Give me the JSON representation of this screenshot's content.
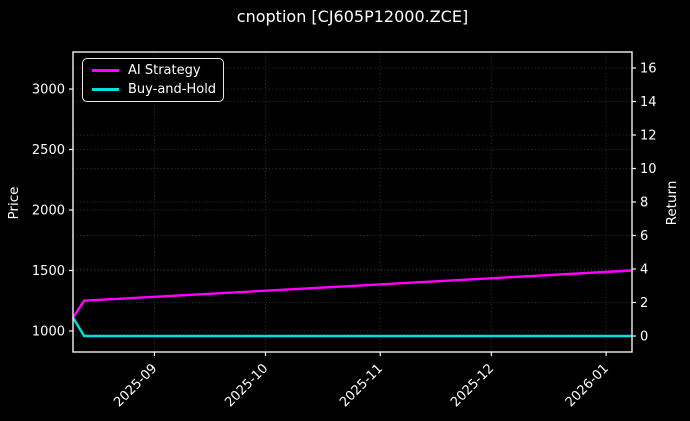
{
  "title": "cnoption [CJ605P12000.ZCE]",
  "colors": {
    "background": "#000000",
    "text": "#ffffff",
    "grid": "#333333",
    "spine": "#f2f2f2",
    "ai_strategy_line": "#ff00ff",
    "buy_and_hold_line": "#00e0e0"
  },
  "legend": {
    "position": "upper left",
    "items": [
      {
        "label": "AI Strategy",
        "color": "#ff00ff"
      },
      {
        "label": "Buy-and-Hold",
        "color": "#00e0e0"
      }
    ]
  },
  "axes": {
    "left_label": "Price",
    "right_label": "Return"
  },
  "chart_data": {
    "type": "line",
    "title": "cnoption [CJ605P12000.ZCE]",
    "xlabel": "",
    "ylabel_left": "Price",
    "ylabel_right": "Return",
    "grid": true,
    "legend_position": "upper left",
    "x_unit": "days since 2025-08-10",
    "xlim": [
      0,
      151
    ],
    "ylim_left": [
      826,
      3306
    ],
    "ylim_right": [
      -0.955,
      16.955
    ],
    "x_ticks": [
      {
        "day": 22,
        "label": "2025-09"
      },
      {
        "day": 52,
        "label": "2025-10"
      },
      {
        "day": 83,
        "label": "2025-11"
      },
      {
        "day": 113,
        "label": "2025-12"
      },
      {
        "day": 144,
        "label": "2026-01"
      }
    ],
    "yticks_left": [
      1000,
      1500,
      2000,
      2500,
      3000
    ],
    "yticks_right": [
      0,
      2,
      4,
      6,
      8,
      10,
      12,
      14,
      16
    ],
    "series": [
      {
        "name": "AI Strategy",
        "color": "#ff00ff",
        "axis": "left",
        "points": [
          [
            0,
            1110
          ],
          [
            3,
            1250
          ],
          [
            151,
            1500
          ]
        ]
      },
      {
        "name": "Buy-and-Hold",
        "color": "#00e0e0",
        "axis": "left",
        "points": [
          [
            0,
            1110
          ],
          [
            3,
            958
          ],
          [
            151,
            958
          ]
        ]
      }
    ],
    "notes": {
      "ai_strategy_end_return": 4,
      "buy_and_hold_end_return": 0
    }
  }
}
